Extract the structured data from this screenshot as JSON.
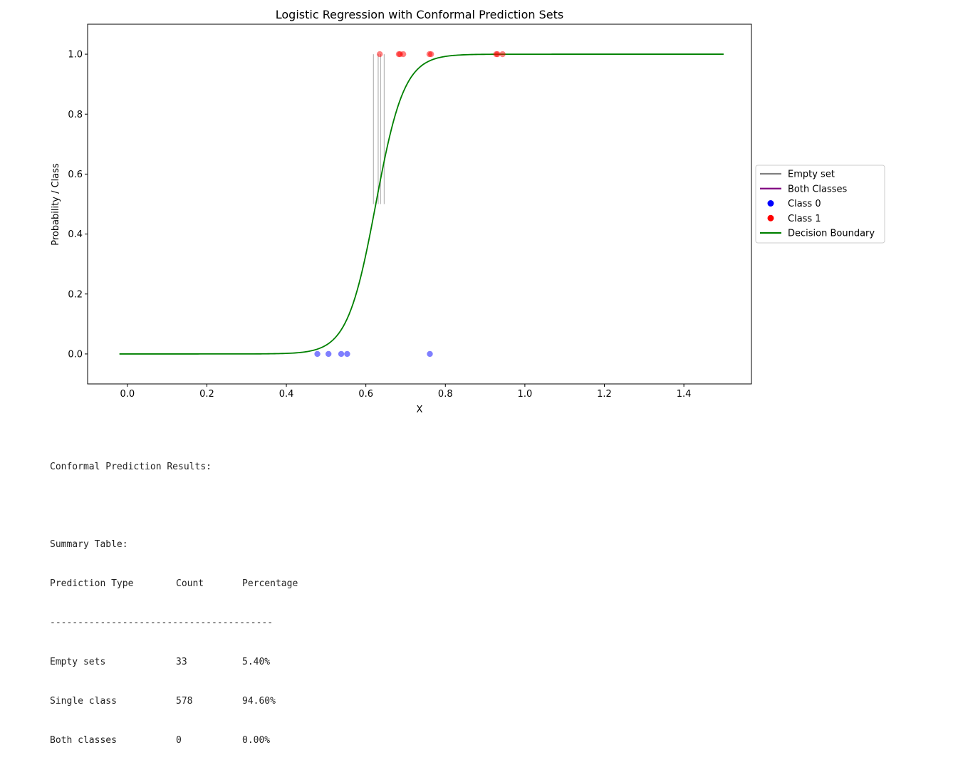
{
  "chart_data": {
    "type": "scatter",
    "title": "Logistic Regression with Conformal Prediction Sets",
    "xlabel": "X",
    "ylabel": "Probability / Class",
    "xlim": [
      -0.1,
      1.57
    ],
    "ylim": [
      -0.1,
      1.1
    ],
    "xticks": [
      0.0,
      0.2,
      0.4,
      0.6,
      0.8,
      1.0,
      1.2,
      1.4
    ],
    "xtick_labels": [
      "0.0",
      "0.2",
      "0.4",
      "0.6",
      "0.8",
      "1.0",
      "1.2",
      "1.4"
    ],
    "yticks": [
      0.0,
      0.2,
      0.4,
      0.6,
      0.8,
      1.0
    ],
    "ytick_labels": [
      "0.0",
      "0.2",
      "0.4",
      "0.6",
      "0.8",
      "1.0"
    ],
    "grid": false,
    "legend_position": "center-right-outside",
    "legend": [
      {
        "label": "Empty set",
        "kind": "line",
        "color": "#808080"
      },
      {
        "label": "Both Classes",
        "kind": "line",
        "color": "#800080"
      },
      {
        "label": "Class 0",
        "kind": "point",
        "color": "#0000ff"
      },
      {
        "label": "Class 1",
        "kind": "point",
        "color": "#ff0000"
      },
      {
        "label": "Decision Boundary",
        "kind": "line",
        "color": "#008000"
      }
    ],
    "series": [
      {
        "name": "Class 0",
        "color": "#0000ff",
        "x": [
          0.478,
          0.506,
          0.538,
          0.553,
          0.761
        ],
        "y": [
          0,
          0,
          0,
          0,
          0
        ]
      },
      {
        "name": "Class 1",
        "color": "#ff0000",
        "x": [
          0.635,
          0.683,
          0.686,
          0.694,
          0.76,
          0.764,
          0.928,
          0.931,
          0.944
        ],
        "y": [
          1,
          1,
          1,
          1,
          1,
          1,
          1,
          1,
          1
        ]
      },
      {
        "name": "Decision Boundary",
        "color": "#008000",
        "curve": "logistic",
        "x_range": [
          -0.02,
          1.5
        ],
        "midpoint": 0.625,
        "steepness": 28
      }
    ],
    "empty_set_segments": {
      "color": "#808080",
      "x": [
        0.619,
        0.631,
        0.637,
        0.646
      ],
      "y_range": [
        0.5,
        1.0
      ]
    }
  },
  "summary": {
    "heading": "Conformal Prediction Results:",
    "table_title": "Summary Table:",
    "columns": [
      "Prediction Type",
      "Count",
      "Percentage"
    ],
    "separator": "----------------------------------------",
    "rows": [
      {
        "type": "Empty sets",
        "count": "33",
        "percentage": "5.40%"
      },
      {
        "type": "Single class",
        "count": "578",
        "percentage": "94.60%"
      },
      {
        "type": "Both classes",
        "count": "0",
        "percentage": "0.00%"
      }
    ]
  }
}
